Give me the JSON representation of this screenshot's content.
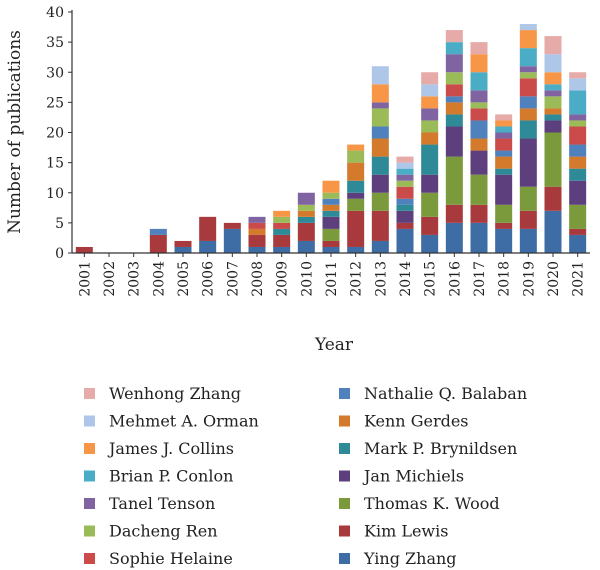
{
  "chart_data": {
    "type": "bar",
    "stacked": true,
    "xlabel": "Year",
    "ylabel": "Number of publications",
    "ylim": [
      0,
      40
    ],
    "yticks": [
      0,
      5,
      10,
      15,
      20,
      25,
      30,
      35,
      40
    ],
    "grid": false,
    "legend_position": "bottom",
    "categories": [
      "2001",
      "2002",
      "2003",
      "2004",
      "2005",
      "2006",
      "2007",
      "2008",
      "2009",
      "2010",
      "2011",
      "2012",
      "2013",
      "2014",
      "2015",
      "2016",
      "2017",
      "2018",
      "2019",
      "2020",
      "2021"
    ],
    "series": [
      {
        "name": "Ying Zhang",
        "color": "#3e6ca5",
        "values": [
          0,
          0,
          0,
          0,
          1,
          2,
          4,
          1,
          1,
          2,
          1,
          1,
          2,
          4,
          3,
          5,
          5,
          4,
          4,
          7,
          3
        ]
      },
      {
        "name": "Kim Lewis",
        "color": "#a83a3e",
        "values": [
          1,
          0,
          0,
          3,
          1,
          4,
          1,
          2,
          2,
          3,
          1,
          6,
          5,
          1,
          3,
          3,
          3,
          1,
          3,
          4,
          1
        ]
      },
      {
        "name": "Thomas K. Wood",
        "color": "#7a9a3b",
        "values": [
          0,
          0,
          0,
          0,
          0,
          0,
          0,
          0,
          0,
          0,
          2,
          2,
          3,
          0,
          4,
          8,
          5,
          3,
          4,
          9,
          4
        ]
      },
      {
        "name": "Jan Michiels",
        "color": "#5e3f7e",
        "values": [
          0,
          0,
          0,
          0,
          0,
          0,
          0,
          0,
          0,
          0,
          2,
          1,
          3,
          2,
          3,
          5,
          4,
          5,
          8,
          2,
          4
        ]
      },
      {
        "name": "Mark P. Brynildsen",
        "color": "#2f8a97",
        "values": [
          0,
          0,
          0,
          0,
          0,
          0,
          0,
          0,
          1,
          1,
          1,
          2,
          3,
          1,
          5,
          2,
          0,
          1,
          3,
          1,
          2
        ]
      },
      {
        "name": "Kenn Gerdes",
        "color": "#d47a2c",
        "values": [
          0,
          0,
          0,
          0,
          0,
          0,
          0,
          1,
          0,
          1,
          1,
          3,
          3,
          0,
          2,
          2,
          2,
          2,
          2,
          1,
          2
        ]
      },
      {
        "name": "Nathalie Q. Balaban",
        "color": "#4f81bd",
        "values": [
          0,
          0,
          0,
          1,
          0,
          0,
          0,
          0,
          0,
          0,
          1,
          0,
          2,
          1,
          0,
          1,
          3,
          1,
          2,
          0,
          2
        ]
      },
      {
        "name": "Sophie Helaine",
        "color": "#cb4a4a",
        "values": [
          0,
          0,
          0,
          0,
          0,
          0,
          0,
          1,
          1,
          0,
          0,
          0,
          0,
          2,
          0,
          2,
          2,
          2,
          3,
          0,
          3
        ]
      },
      {
        "name": "Dacheng Ren",
        "color": "#9bbb59",
        "values": [
          0,
          0,
          0,
          0,
          0,
          0,
          0,
          0,
          1,
          1,
          1,
          2,
          3,
          1,
          2,
          2,
          1,
          0,
          1,
          2,
          1
        ]
      },
      {
        "name": "Tanel Tenson",
        "color": "#8064a2",
        "values": [
          0,
          0,
          0,
          0,
          0,
          0,
          0,
          1,
          0,
          2,
          0,
          0,
          1,
          1,
          2,
          3,
          2,
          1,
          1,
          1,
          1
        ]
      },
      {
        "name": "Brian P. Conlon",
        "color": "#4bacc6",
        "values": [
          0,
          0,
          0,
          0,
          0,
          0,
          0,
          0,
          0,
          0,
          0,
          0,
          0,
          1,
          0,
          2,
          3,
          1,
          3,
          1,
          4
        ]
      },
      {
        "name": "James J. Collins",
        "color": "#f79646",
        "values": [
          0,
          0,
          0,
          0,
          0,
          0,
          0,
          0,
          1,
          0,
          2,
          1,
          3,
          0,
          2,
          0,
          3,
          1,
          3,
          2,
          0
        ]
      },
      {
        "name": "Mehmet A. Orman",
        "color": "#aec6e8",
        "values": [
          0,
          0,
          0,
          0,
          0,
          0,
          0,
          0,
          0,
          0,
          0,
          0,
          3,
          1,
          2,
          0,
          0,
          0,
          1,
          3,
          2
        ]
      },
      {
        "name": "Wenhong Zhang",
        "color": "#e6aaa8",
        "values": [
          0,
          0,
          0,
          0,
          0,
          0,
          0,
          0,
          0,
          0,
          0,
          0,
          0,
          1,
          2,
          2,
          2,
          1,
          0,
          3,
          1
        ]
      }
    ],
    "legend_order": [
      "Wenhong Zhang",
      "Nathalie Q. Balaban",
      "Mehmet A. Orman",
      "Kenn Gerdes",
      "James J. Collins",
      "Mark P. Brynildsen",
      "Brian P. Conlon",
      "Jan Michiels",
      "Tanel Tenson",
      "Thomas K. Wood",
      "Dacheng Ren",
      "Kim Lewis",
      "Sophie Helaine",
      "Ying Zhang"
    ]
  }
}
